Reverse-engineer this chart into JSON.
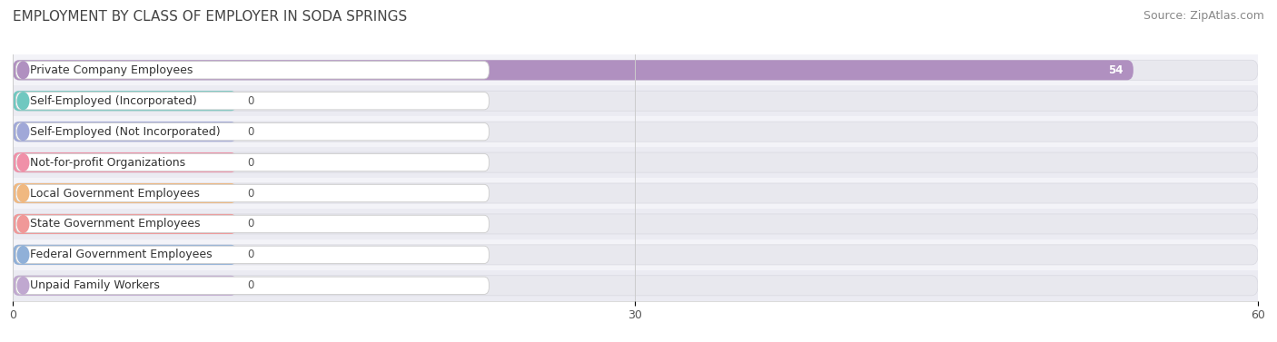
{
  "title": "EMPLOYMENT BY CLASS OF EMPLOYER IN SODA SPRINGS",
  "source": "Source: ZipAtlas.com",
  "categories": [
    "Private Company Employees",
    "Self-Employed (Incorporated)",
    "Self-Employed (Not Incorporated)",
    "Not-for-profit Organizations",
    "Local Government Employees",
    "State Government Employees",
    "Federal Government Employees",
    "Unpaid Family Workers"
  ],
  "values": [
    54,
    0,
    0,
    0,
    0,
    0,
    0,
    0
  ],
  "bar_colors": [
    "#b090c0",
    "#70c8c0",
    "#a0a8d8",
    "#f090a8",
    "#f0b880",
    "#f09898",
    "#90b0d8",
    "#c0a8d0"
  ],
  "xlim": [
    0,
    60
  ],
  "xticks": [
    0,
    30,
    60
  ],
  "title_fontsize": 11,
  "source_fontsize": 9,
  "label_fontsize": 9,
  "value_fontsize": 8.5
}
